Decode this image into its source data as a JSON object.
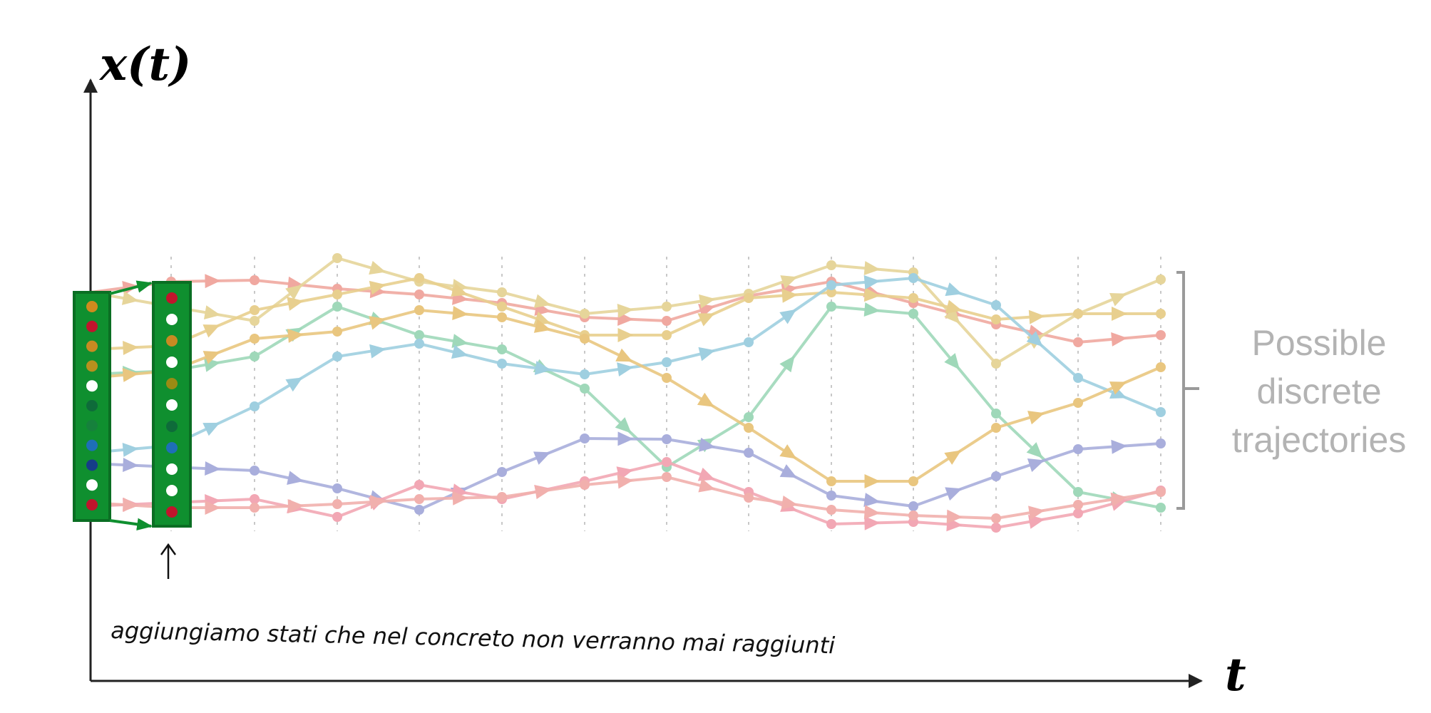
{
  "diagram": {
    "y_axis_label": "x(t)",
    "x_axis_label": "t",
    "brace_label_lines": [
      "Possible",
      "discrete",
      "trajectories"
    ],
    "annotation": "aggiungiamo stati che nel concreto non verranno mai raggiunti",
    "colors": {
      "axis": "#222222",
      "grid": "#c8c8c8",
      "state_column": "#0f8f2f",
      "brace": "#9a9a9a"
    },
    "trajectories": [
      {
        "color": "#f0a8a0"
      },
      {
        "color": "#e6d59a"
      },
      {
        "color": "#e8cf8e"
      },
      {
        "color": "#9fd8b9"
      },
      {
        "color": "#9fcfe0"
      },
      {
        "color": "#a9aedc"
      },
      {
        "color": "#f2a7b4"
      },
      {
        "color": "#e9c67f"
      },
      {
        "color": "#f1b0ad"
      }
    ],
    "state_dots_colors": [
      "#d08a1e",
      "#c0152c",
      "#c88a22",
      "#b8901e",
      "#ffffff",
      "#0e6b3a",
      "#16813c",
      "#1e6fb8",
      "#163d88",
      "#ffffff",
      "#c0152c"
    ],
    "state_dots_colors_col2": [
      "#c0152c",
      "#ffffff",
      "#c88a22",
      "#ffffff",
      "#9a8b14",
      "#ffffff",
      "#0e6b3a",
      "#1e6fb8",
      "#ffffff",
      "#ffffff",
      "#c0152c"
    ]
  }
}
